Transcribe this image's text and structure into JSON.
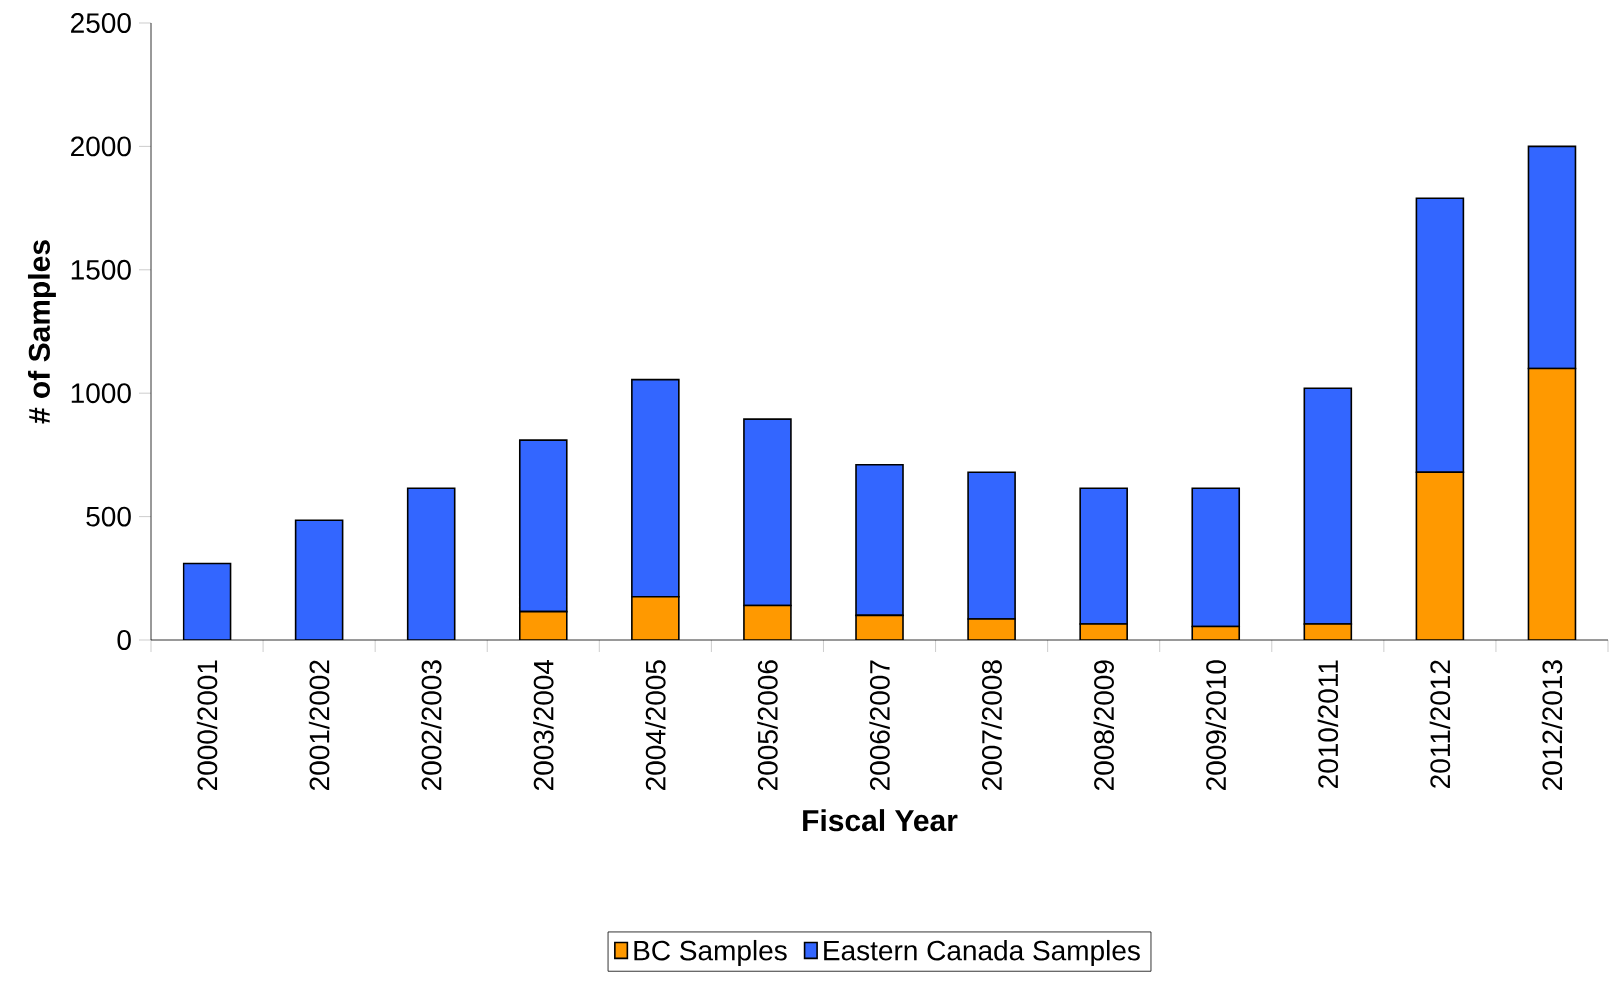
{
  "chart_data": {
    "type": "bar",
    "stacked": true,
    "xlabel": "Fiscal Year",
    "ylabel": "# of Samples",
    "categories": [
      "2000/2001",
      "2001/2002",
      "2002/2003",
      "2003/2004",
      "2004/2005",
      "2005/2006",
      "2006/2007",
      "2007/2008",
      "2008/2009",
      "2009/2010",
      "2010/2011",
      "2011/2012",
      "2012/2013"
    ],
    "series": [
      {
        "name": "BC Samples",
        "color": "#ff9900",
        "values": [
          0,
          0,
          0,
          115,
          175,
          140,
          100,
          85,
          65,
          55,
          65,
          680,
          1100
        ]
      },
      {
        "name": "Eastern Canada Samples",
        "color": "#3366ff",
        "values": [
          310,
          485,
          615,
          695,
          880,
          755,
          610,
          595,
          550,
          560,
          955,
          1110,
          900
        ]
      }
    ],
    "ylim": [
      0,
      2500
    ],
    "yticks": [
      0,
      500,
      1000,
      1500,
      2000,
      2500
    ],
    "grid": false,
    "legend": "bottom"
  }
}
